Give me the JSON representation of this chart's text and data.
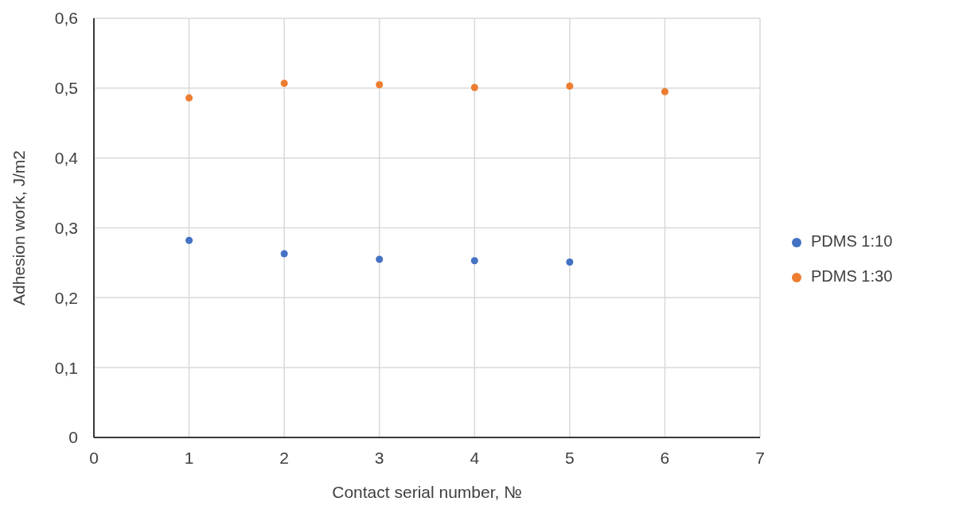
{
  "chart_data": {
    "type": "scatter",
    "xlabel": "Contact serial number, №",
    "ylabel": "Adhesion work, J/m2",
    "xlim": [
      0,
      7
    ],
    "xticks": [
      0,
      1,
      2,
      3,
      4,
      5,
      6,
      7
    ],
    "ylim": [
      0,
      0.6
    ],
    "yticks": [
      0,
      {
        "value": 0.1,
        "label": "0,1"
      },
      {
        "value": 0.2,
        "label": "0,2"
      },
      {
        "value": 0.3,
        "label": "0,3"
      },
      {
        "value": 0.4,
        "label": "0,4"
      },
      {
        "value": 0.5,
        "label": "0,5"
      },
      {
        "value": 0.6,
        "label": "0,6"
      }
    ],
    "grid": true,
    "legend": "right",
    "marker": "circle",
    "series": [
      {
        "name": "PDMS 1:10",
        "color": "#4472c4",
        "x": [
          1,
          2,
          3,
          4,
          5
        ],
        "values": [
          0.282,
          0.263,
          0.255,
          0.253,
          0.251
        ]
      },
      {
        "name": "PDMS 1:30",
        "color": "#ed7d31",
        "x": [
          1,
          2,
          3,
          4,
          5,
          6
        ],
        "values": [
          0.486,
          0.507,
          0.505,
          0.501,
          0.503,
          0.495
        ]
      }
    ]
  }
}
